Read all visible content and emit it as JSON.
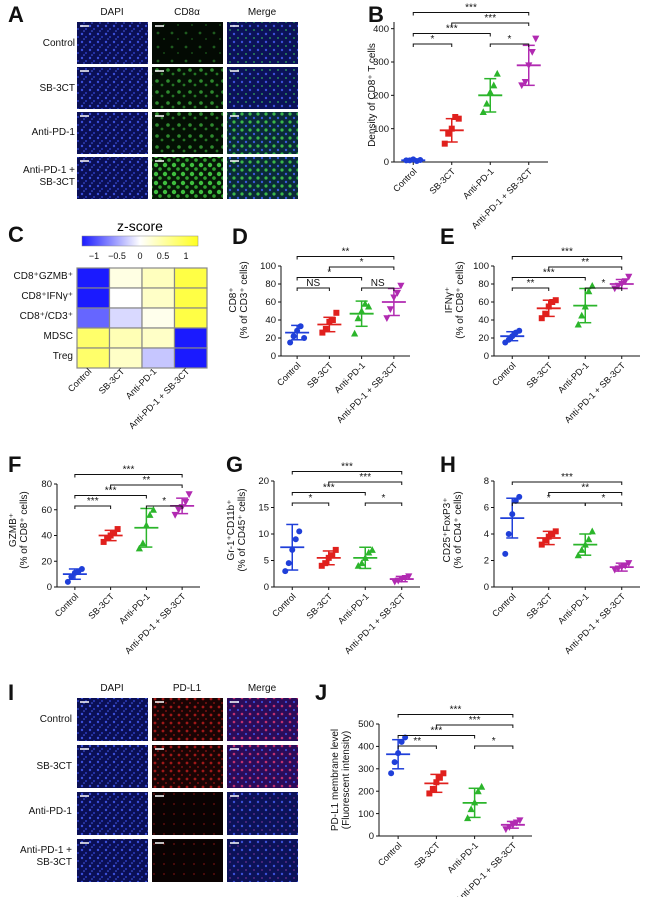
{
  "panel_labels": [
    "A",
    "B",
    "C",
    "D",
    "E",
    "F",
    "G",
    "H",
    "I",
    "J"
  ],
  "colors": {
    "control": "#1f3fd9",
    "sb3ct": "#e0201d",
    "antipd1": "#2bb52b",
    "combo": "#b12ab1"
  },
  "groups": [
    "Control",
    "SB-3CT",
    "Anti-PD-1",
    "Anti-PD-1 + SB-3CT"
  ],
  "panelA": {
    "columns": [
      "DAPI",
      "CD8α",
      "Merge"
    ],
    "rows": [
      "Control",
      "SB-3CT",
      "Anti-PD-1",
      "Anti-PD-1 +",
      "SB-3CT"
    ]
  },
  "panelI": {
    "columns": [
      "DAPI",
      "PD-L1",
      "Merge"
    ],
    "rows": [
      "Control",
      "SB-3CT",
      "Anti-PD-1",
      "Anti-PD-1 +",
      "SB-3CT"
    ]
  },
  "heatmap": {
    "title": "z-score",
    "scale_ticks": [
      "−1",
      "−0.5",
      "0",
      "0.5",
      "1"
    ],
    "rows": [
      "CD8⁺GZMB⁺",
      "CD8⁺IFNγ⁺",
      "CD8⁺/CD3⁺",
      "MDSC",
      "Treg"
    ],
    "columns": [
      "Control",
      "SB-3CT",
      "Anti-PD-1",
      "Anti-PD-1 + SB-3CT"
    ],
    "values": [
      [
        -1.2,
        0.15,
        0.35,
        1.0
      ],
      [
        -1.2,
        0.0,
        0.3,
        1.0
      ],
      [
        -0.8,
        -0.2,
        0.1,
        1.0
      ],
      [
        0.8,
        0.4,
        0.3,
        -1.5
      ],
      [
        0.8,
        0.3,
        -0.3,
        -1.5
      ]
    ]
  },
  "chart_data": [
    {
      "id": "B",
      "type": "scatter",
      "xlabel": "",
      "ylabel": "Density of CD8⁺ T cells",
      "yticks": [
        "0",
        "100",
        "200",
        "300",
        "400"
      ],
      "ylim": [
        0,
        420
      ],
      "categories": [
        "Control",
        "SB-3CT",
        "Anti-PD-1",
        "Anti-PD-1 + SB-3CT"
      ],
      "points": [
        [
          5,
          5,
          8,
          3,
          6
        ],
        [
          55,
          85,
          100,
          135,
          130
        ],
        [
          150,
          175,
          210,
          230,
          265
        ],
        [
          230,
          240,
          290,
          330,
          370
        ]
      ],
      "mean": [
        5,
        95,
        200,
        290
      ],
      "sd": [
        3,
        35,
        50,
        60
      ],
      "sig": [
        {
          "a": 0,
          "b": 1,
          "label": "*"
        },
        {
          "a": 0,
          "b": 2,
          "label": "***"
        },
        {
          "a": 2,
          "b": 3,
          "label": "*"
        },
        {
          "a": 1,
          "b": 3,
          "label": "***"
        },
        {
          "a": 0,
          "b": 3,
          "label": "***"
        }
      ]
    },
    {
      "id": "D",
      "type": "scatter",
      "ylabel_lines": [
        "CD8⁺",
        "(% of CD3⁺ cells)"
      ],
      "yticks": [
        "0",
        "20",
        "40",
        "60",
        "80",
        "100"
      ],
      "ylim": [
        0,
        100
      ],
      "categories": [
        "Control",
        "SB-3CT",
        "Anti-PD-1",
        "Anti-PD-1 + SB-3CT"
      ],
      "points": [
        [
          15,
          22,
          28,
          33,
          20
        ],
        [
          26,
          30,
          38,
          40,
          48
        ],
        [
          25,
          42,
          50,
          58,
          55
        ],
        [
          42,
          52,
          65,
          70,
          78
        ]
      ],
      "mean": [
        26,
        35,
        47,
        60
      ],
      "sd": [
        8,
        8,
        14,
        15
      ],
      "sig": [
        {
          "a": 0,
          "b": 1,
          "label": "NS"
        },
        {
          "a": 0,
          "b": 2,
          "label": "*"
        },
        {
          "a": 2,
          "b": 3,
          "label": "NS"
        },
        {
          "a": 1,
          "b": 3,
          "label": "*"
        },
        {
          "a": 0,
          "b": 3,
          "label": "**"
        }
      ]
    },
    {
      "id": "E",
      "type": "scatter",
      "ylabel_lines": [
        "IFNγ⁺",
        "(% of CD8⁺ cells)"
      ],
      "yticks": [
        "0",
        "20",
        "40",
        "60",
        "80",
        "100"
      ],
      "ylim": [
        0,
        100
      ],
      "categories": [
        "Control",
        "SB-3CT",
        "Anti-PD-1",
        "Anti-PD-1 + SB-3CT"
      ],
      "points": [
        [
          15,
          18,
          22,
          26,
          28
        ],
        [
          42,
          47,
          55,
          60,
          62
        ],
        [
          35,
          45,
          55,
          72,
          78
        ],
        [
          75,
          78,
          80,
          83,
          88
        ]
      ],
      "mean": [
        22,
        53,
        56,
        80
      ],
      "sd": [
        5,
        9,
        19,
        5
      ],
      "sig": [
        {
          "a": 0,
          "b": 1,
          "label": "**"
        },
        {
          "a": 0,
          "b": 2,
          "label": "***"
        },
        {
          "a": 2,
          "b": 3,
          "label": "*"
        },
        {
          "a": 1,
          "b": 3,
          "label": "**"
        },
        {
          "a": 0,
          "b": 3,
          "label": "***"
        }
      ]
    },
    {
      "id": "F",
      "type": "scatter",
      "ylabel_lines": [
        "GZMB⁺",
        "(% of CD8⁺ cells)"
      ],
      "yticks": [
        "0",
        "20",
        "40",
        "60",
        "80"
      ],
      "ylim": [
        0,
        80
      ],
      "categories": [
        "Control",
        "SB-3CT",
        "Anti-PD-1",
        "Anti-PD-1 + SB-3CT"
      ],
      "points": [
        [
          4,
          8,
          11,
          12,
          14
        ],
        [
          35,
          38,
          40,
          42,
          45
        ],
        [
          30,
          34,
          48,
          56,
          60
        ],
        [
          56,
          60,
          62,
          66,
          72
        ]
      ],
      "mean": [
        10,
        40,
        46,
        63
      ],
      "sd": [
        4,
        4,
        15,
        6
      ],
      "sig": [
        {
          "a": 0,
          "b": 1,
          "label": "***"
        },
        {
          "a": 0,
          "b": 2,
          "label": "***"
        },
        {
          "a": 2,
          "b": 3,
          "label": "*"
        },
        {
          "a": 1,
          "b": 3,
          "label": "**"
        },
        {
          "a": 0,
          "b": 3,
          "label": "***"
        }
      ]
    },
    {
      "id": "G",
      "type": "scatter",
      "ylabel_lines": [
        "Gr-1⁺CD11b⁺",
        "(% of CD45⁺ cells)"
      ],
      "yticks": [
        "0",
        "5",
        "10",
        "15",
        "20"
      ],
      "ylim": [
        0,
        20
      ],
      "categories": [
        "Control",
        "SB-3CT",
        "Anti-PD-1",
        "Anti-PD-1 + SB-3CT"
      ],
      "points": [
        [
          3,
          4.5,
          7,
          9,
          10.5
        ],
        [
          4,
          4.5,
          5.5,
          6,
          7
        ],
        [
          4,
          4.5,
          5.5,
          6.5,
          7
        ],
        [
          1,
          1.2,
          1.5,
          1.7,
          2
        ]
      ],
      "mean": [
        7.5,
        5.5,
        5.5,
        1.5
      ],
      "sd": [
        4.3,
        1.3,
        2,
        0.5
      ],
      "sig": [
        {
          "a": 0,
          "b": 1,
          "label": "*"
        },
        {
          "a": 0,
          "b": 2,
          "label": "***"
        },
        {
          "a": 2,
          "b": 3,
          "label": "*"
        },
        {
          "a": 1,
          "b": 3,
          "label": "***"
        },
        {
          "a": 0,
          "b": 3,
          "label": "***"
        }
      ]
    },
    {
      "id": "H",
      "type": "scatter",
      "ylabel_lines": [
        "CD25⁺FoxP3⁺",
        "(% of CD4⁺ cells)"
      ],
      "yticks": [
        "0",
        "2",
        "4",
        "6",
        "8"
      ],
      "ylim": [
        0,
        8
      ],
      "categories": [
        "Control",
        "SB-3CT",
        "Anti-PD-1",
        "Anti-PD-1 + SB-3CT"
      ],
      "points": [
        [
          2.5,
          4,
          5.5,
          6.5,
          6.8
        ],
        [
          3.2,
          3.5,
          3.8,
          4,
          4.2
        ],
        [
          2.4,
          2.8,
          3.2,
          3.6,
          4.2
        ],
        [
          1.3,
          1.4,
          1.5,
          1.6,
          1.8
        ]
      ],
      "mean": [
        5.2,
        3.7,
        3.2,
        1.5
      ],
      "sd": [
        1.5,
        0.5,
        0.8,
        0.3
      ],
      "sig": [
        {
          "a": 0,
          "b": 2,
          "label": "*"
        },
        {
          "a": 2,
          "b": 3,
          "label": "*"
        },
        {
          "a": 1,
          "b": 3,
          "label": "**"
        },
        {
          "a": 0,
          "b": 3,
          "label": "***"
        }
      ]
    },
    {
      "id": "J",
      "type": "scatter",
      "ylabel_lines": [
        "PD-L1 membrane level",
        "(Fluorescent intensity)"
      ],
      "yticks": [
        "0",
        "100",
        "200",
        "300",
        "400",
        "500"
      ],
      "ylim": [
        0,
        500
      ],
      "categories": [
        "Control",
        "SB-3CT",
        "Anti-PD-1",
        "Anti-PD-1 + SB-3CT"
      ],
      "points": [
        [
          280,
          330,
          370,
          420,
          440
        ],
        [
          190,
          210,
          240,
          260,
          280
        ],
        [
          80,
          120,
          150,
          200,
          220
        ],
        [
          30,
          40,
          50,
          60,
          70
        ]
      ],
      "mean": [
        365,
        235,
        148,
        50
      ],
      "sd": [
        65,
        40,
        65,
        15
      ],
      "sig": [
        {
          "a": 0,
          "b": 1,
          "label": "**"
        },
        {
          "a": 0,
          "b": 2,
          "label": "***"
        },
        {
          "a": 2,
          "b": 3,
          "label": "*"
        },
        {
          "a": 1,
          "b": 3,
          "label": "***"
        },
        {
          "a": 0,
          "b": 3,
          "label": "***"
        }
      ]
    }
  ]
}
